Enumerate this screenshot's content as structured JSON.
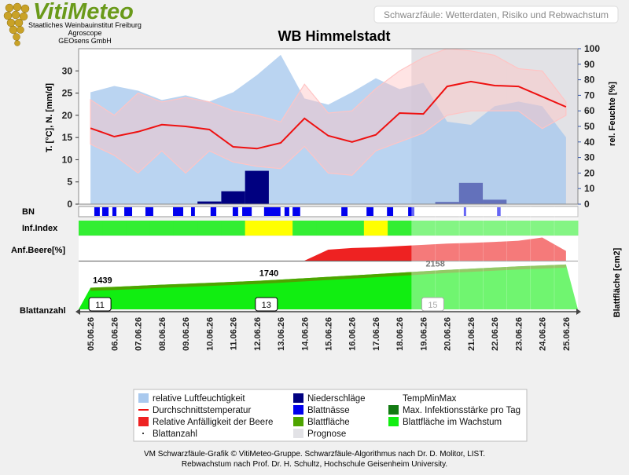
{
  "header": {
    "logo": "VitiMeteo",
    "org_lines": [
      "Staatliches Weinbauinstitut Freiburg",
      "Agroscope",
      "GEOsens GmbH"
    ],
    "subtitle": "Schwarzfäule: Wetterdaten, Risiko und Rebwachstum"
  },
  "chart_data": {
    "type": "combo",
    "title": "WB Himmelstadt",
    "categories": [
      "05.06.26",
      "06.06.26",
      "07.06.26",
      "08.06.26",
      "09.06.26",
      "10.06.26",
      "11.06.26",
      "12.06.26",
      "13.06.26",
      "14.06.26",
      "15.06.26",
      "16.06.26",
      "17.06.26",
      "18.06.26",
      "19.06.26",
      "20.06.26",
      "21.06.26",
      "22.06.26",
      "23.06.26",
      "24.06.26",
      "25.06.26"
    ],
    "forecast": [
      false,
      false,
      false,
      false,
      false,
      false,
      false,
      false,
      false,
      false,
      false,
      false,
      false,
      false,
      true,
      true,
      true,
      true,
      true,
      true,
      true
    ],
    "forecast_name": "Prognose",
    "forecast_color": "#e2e2e6",
    "y_label": "T. [°C], N. [mm/d]",
    "y2_label": "rel. Feuchte [%]",
    "ylim": [
      0,
      35
    ],
    "yticks": [
      0,
      5,
      10,
      15,
      20,
      25,
      30
    ],
    "y2lim": [
      0,
      100
    ],
    "y2ticks": [
      0,
      10,
      20,
      30,
      40,
      50,
      60,
      70,
      80,
      90,
      100
    ],
    "grid": false,
    "series": [
      {
        "name": "relative Luftfeuchtigkeit",
        "color": "#a9c9ee",
        "type": "area",
        "axis": "y2",
        "values": [
          72,
          76,
          73,
          67,
          70,
          66,
          72,
          83,
          96,
          68,
          64,
          72,
          81,
          74,
          78,
          53,
          51,
          63,
          66,
          63,
          43
        ]
      },
      {
        "name": "Niederschläge",
        "color": "#000080",
        "type": "bar",
        "values": [
          0,
          0,
          0,
          0,
          0,
          0.6,
          2.9,
          7.5,
          0,
          0,
          0,
          0,
          0,
          0,
          0,
          0.5,
          4.8,
          1.0,
          0,
          0,
          0
        ]
      },
      {
        "name": "TempMinMax",
        "color": "#ffc4c4",
        "type": "band",
        "min": [
          13.5,
          11,
          7,
          12,
          7,
          12,
          9.5,
          8.5,
          8,
          13,
          7,
          6.5,
          12,
          14,
          16,
          20,
          21,
          21,
          21,
          17,
          20
        ],
        "max": [
          23.5,
          20,
          25,
          23,
          24,
          23,
          21,
          20,
          18.5,
          27,
          20.5,
          21,
          26,
          30,
          33,
          35,
          34.5,
          33.5,
          30.5,
          30,
          23
        ]
      },
      {
        "name": "Durchschnittstemperatur",
        "color": "#ee1111",
        "type": "line",
        "values": [
          17.1,
          15.2,
          16.3,
          17.9,
          17.5,
          16.8,
          12.9,
          12.5,
          13.8,
          19.3,
          15.4,
          14.0,
          15.6,
          20.5,
          20.3,
          26.5,
          27.6,
          26.7,
          26.5,
          24.2,
          21.9
        ]
      }
    ],
    "leaf_wetness": {
      "label": "BN",
      "name": "Blattnässe",
      "color": "#0000ee",
      "periods": [
        [
          0.66,
          0.89
        ],
        [
          0.99,
          1.26
        ],
        [
          1.42,
          1.59
        ],
        [
          1.92,
          2.25
        ],
        [
          2.81,
          3.14
        ],
        [
          3.97,
          4.4
        ],
        [
          4.73,
          4.89
        ],
        [
          5.55,
          5.79
        ],
        [
          6.48,
          6.71
        ],
        [
          6.88,
          7.28
        ],
        [
          7.8,
          8.49
        ],
        [
          8.66,
          8.86
        ],
        [
          9.0,
          9.32
        ],
        [
          11.05,
          11.31
        ],
        [
          12.11,
          12.4
        ],
        [
          12.97,
          13.23
        ],
        [
          13.86,
          14.12
        ],
        [
          16.2,
          16.3
        ],
        [
          17.6,
          17.75
        ]
      ]
    },
    "infection": {
      "label": "Inf.Index",
      "name": "Max. Infektionsstärke pro Tag",
      "color": "#127a12",
      "level_colors": [
        "#33ee33",
        "#ffff00"
      ],
      "values": [
        0,
        0,
        0,
        0,
        0,
        0,
        0,
        1,
        1,
        0,
        0,
        0,
        1,
        0,
        0,
        0,
        0,
        0,
        0,
        0,
        0
      ]
    },
    "susceptibility": {
      "label": "Anf.Beere[%]",
      "name": "Relative Anfälligkeit der Beere",
      "color": "#ee2222",
      "ylim": [
        0,
        100
      ],
      "values": [
        0,
        0,
        0,
        0,
        0,
        0,
        0,
        0,
        0,
        0,
        45,
        52,
        55,
        60,
        65,
        70,
        73,
        77,
        82,
        95,
        40
      ]
    },
    "leaf_area": {
      "label": "Blattfläche [cm2]",
      "name": "Blattfläche",
      "color": "#4ea400",
      "growth_name": "Blattfläche im Wachstum",
      "growth_color": "#11ee11",
      "ylim": [
        500,
        2550
      ],
      "values": [
        1439,
        1480,
        1525,
        1570,
        1610,
        1655,
        1697,
        1740,
        1795,
        1855,
        1915,
        1975,
        2035,
        2095,
        2158,
        2215,
        2270,
        2320,
        2370,
        2410,
        2450
      ]
    },
    "leaf_count": {
      "label": "Blattanzahl",
      "color": "#000000",
      "values": [
        11,
        null,
        null,
        null,
        null,
        null,
        null,
        13,
        null,
        null,
        null,
        null,
        null,
        null,
        15,
        null,
        null,
        null,
        null,
        null,
        null
      ]
    }
  },
  "footer": [
    "VM Schwarzfäule-Grafik © VitiMeteo-Gruppe. Schwarzfäule-Algorithmus nach Dr. D. Molitor, LIST.",
    "Rebwachstum nach Prof. Dr. H. Schultz, Hochschule Geisenheim University."
  ]
}
